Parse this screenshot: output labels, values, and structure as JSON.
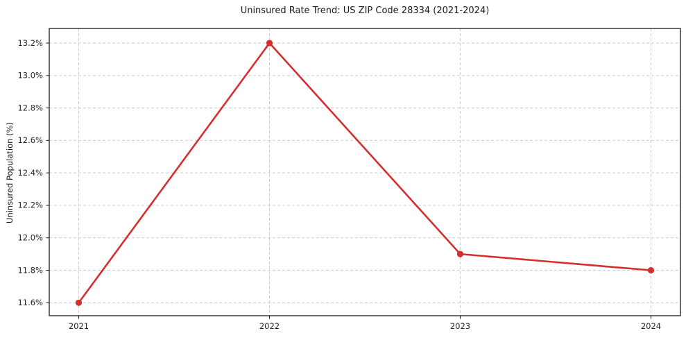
{
  "chart_data": {
    "type": "line",
    "title": "Uninsured Rate Trend: US ZIP Code 28334 (2021-2024)",
    "xlabel": "",
    "ylabel": "Uninsured Population (%)",
    "x": [
      2021,
      2022,
      2023,
      2024
    ],
    "values": [
      11.6,
      13.2,
      11.9,
      11.8
    ],
    "xtick_labels": [
      "2021",
      "2022",
      "2023",
      "2024"
    ],
    "yticks": [
      11.6,
      11.8,
      12.0,
      12.2,
      12.4,
      12.6,
      12.8,
      13.0,
      13.2
    ],
    "ytick_labels": [
      "11.6%",
      "11.8%",
      "12.0%",
      "12.2%",
      "12.4%",
      "12.6%",
      "12.8%",
      "13.0%",
      "13.2%"
    ],
    "ylim": [
      11.52,
      13.29
    ],
    "grid": true,
    "grid_style": "dashed",
    "legend": "none",
    "line_color": "#d32f2f",
    "marker_color": "#d32f2f",
    "grid_color": "#cccccc",
    "axis_color": "#1a1a1a",
    "text_color": "#262626"
  }
}
